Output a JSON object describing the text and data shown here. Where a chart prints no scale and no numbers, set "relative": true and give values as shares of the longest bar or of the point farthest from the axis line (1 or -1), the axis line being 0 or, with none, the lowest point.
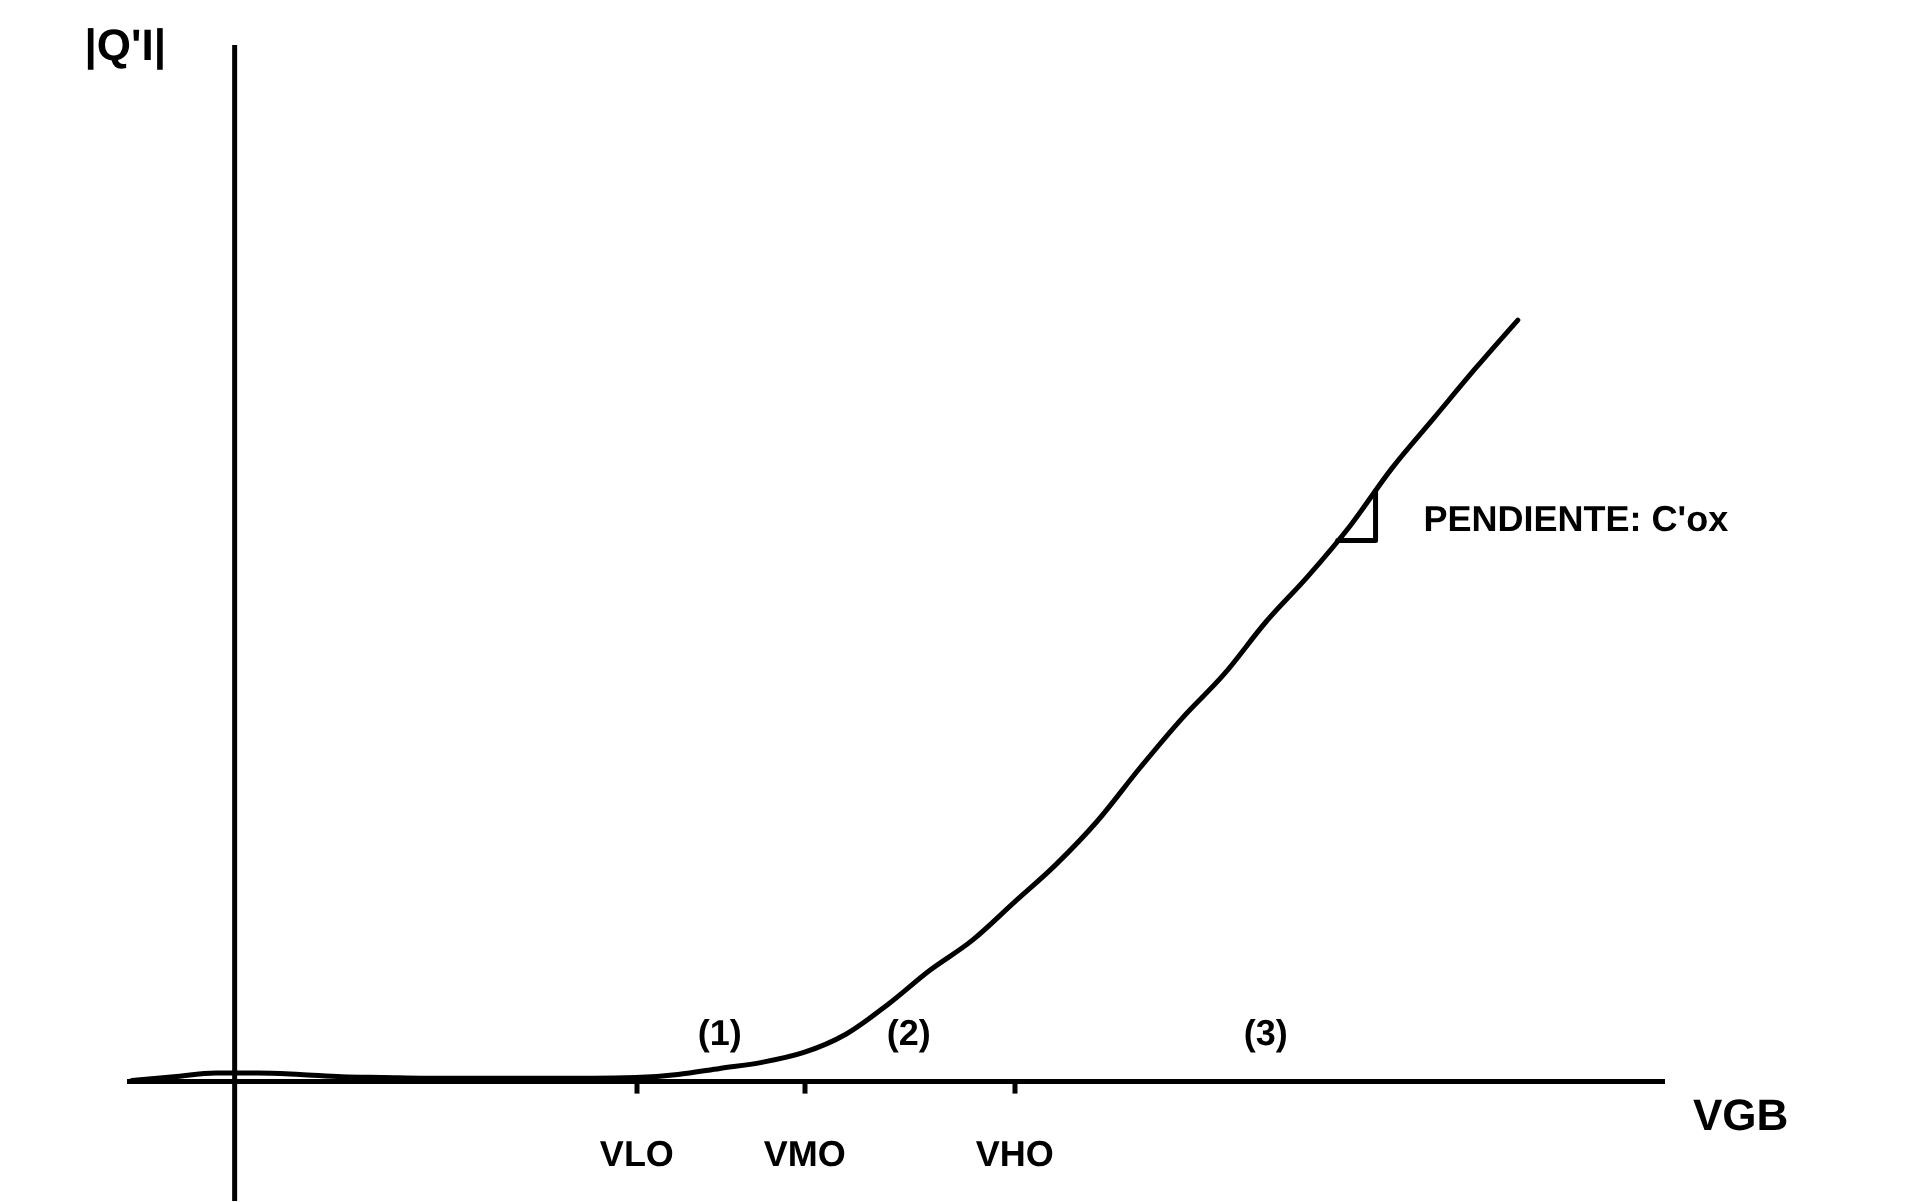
{
  "chart_data": {
    "type": "line",
    "relative": true,
    "xlabel": "VGB",
    "categories": [
      null,
      null,
      null,
      null,
      null,
      null,
      null,
      null,
      null,
      null,
      null,
      null,
      "VLO",
      null,
      null,
      null,
      "VMO",
      null,
      null,
      null,
      null,
      "VHO",
      null,
      null,
      null,
      null,
      null,
      null,
      null,
      null,
      null,
      null,
      null,
      null
    ],
    "series": [
      {
        "color": "#000000",
        "values": [
          0.0,
          0.005,
          0.01,
          0.01,
          0.008,
          0.005,
          0.004,
          0.003,
          0.003,
          0.003,
          0.003,
          0.003,
          0.004,
          0.008,
          0.016,
          0.024,
          0.037,
          0.061,
          0.1,
          0.145,
          0.184,
          0.234,
          0.284,
          0.342,
          0.411,
          0.476,
          0.534,
          0.603,
          0.663,
          0.729,
          0.805,
          0.871,
          0.937,
          1.0
        ]
      }
    ],
    "annotations": [
      "|Q'I|",
      "(1)",
      "(2)",
      "(3)",
      "PENDIENTE: C'ox"
    ],
    "marker": "none",
    "line_style": "solid",
    "tick_labels": "x"
  }
}
